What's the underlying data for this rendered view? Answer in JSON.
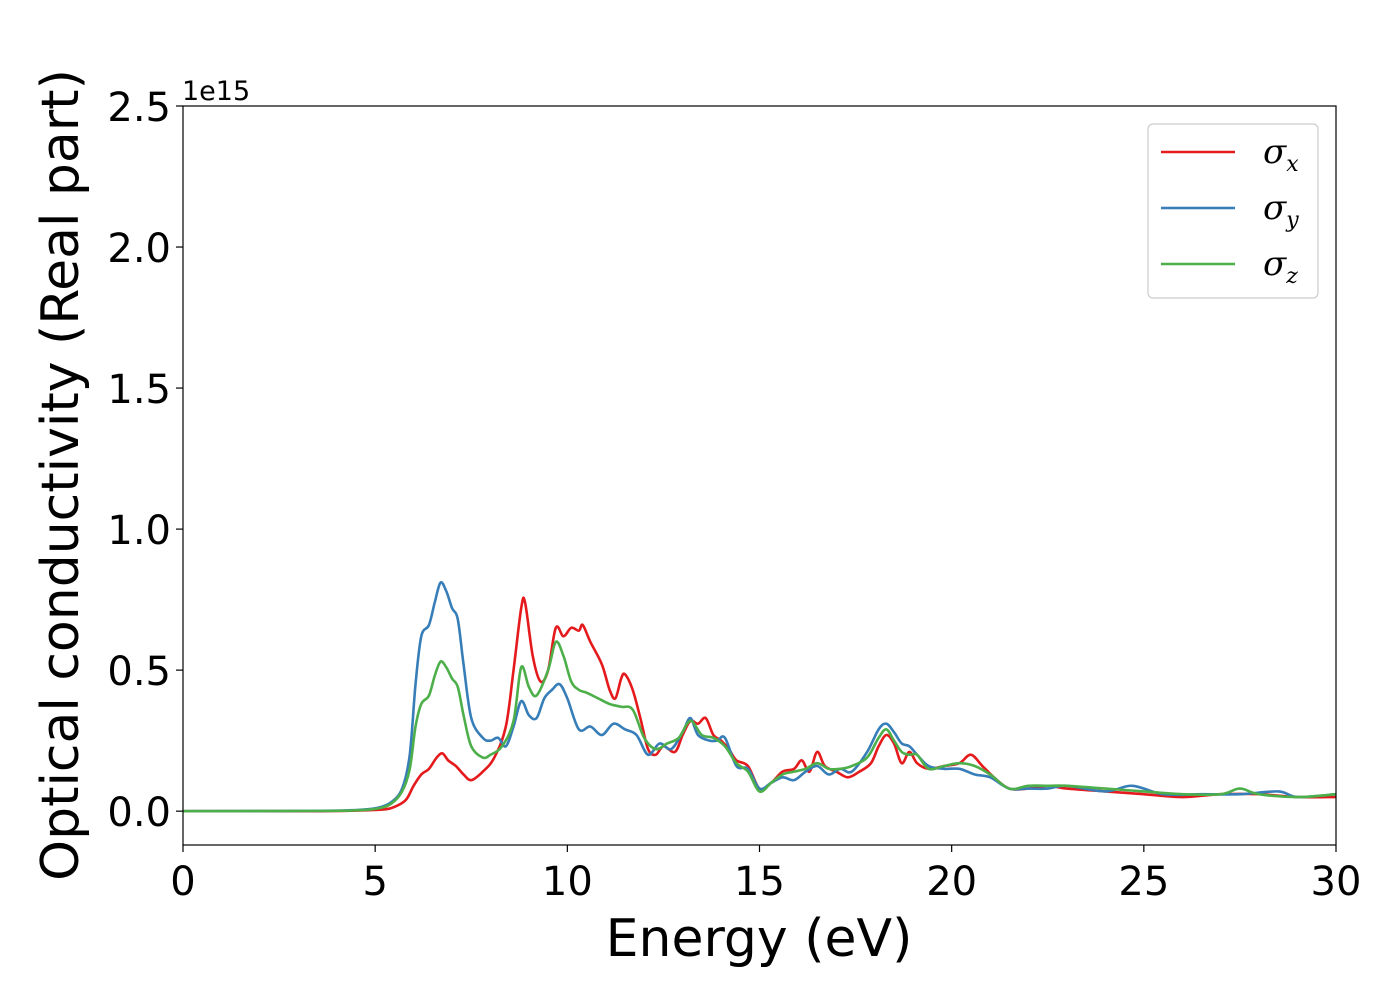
{
  "chart_data": {
    "type": "line",
    "title": "",
    "xlabel": "Energy (eV)",
    "ylabel": "Optical conductivity (Real part)",
    "y_offset_label": "1e15",
    "xlim": [
      0,
      30
    ],
    "ylim": [
      -0.12,
      2.5
    ],
    "x_ticks": [
      0,
      5,
      10,
      15,
      20,
      25,
      30
    ],
    "x_tick_labels": [
      "0",
      "5",
      "10",
      "15",
      "20",
      "25",
      "30"
    ],
    "y_ticks": [
      0.0,
      0.5,
      1.0,
      1.5,
      2.0,
      2.5
    ],
    "y_tick_labels": [
      "0.0",
      "0.5",
      "1.0",
      "1.5",
      "2.0",
      "2.5"
    ],
    "grid": false,
    "legend_position": "top-right",
    "series": [
      {
        "name": "σx",
        "legend_base": "σ",
        "legend_sub": "x",
        "color": "#e41a1c",
        "points": [
          [
            0,
            0.0
          ],
          [
            3.5,
            0.0
          ],
          [
            4.5,
            0.002
          ],
          [
            5.2,
            0.006
          ],
          [
            5.5,
            0.015
          ],
          [
            5.8,
            0.04
          ],
          [
            6.0,
            0.09
          ],
          [
            6.2,
            0.13
          ],
          [
            6.4,
            0.15
          ],
          [
            6.6,
            0.19
          ],
          [
            6.75,
            0.205
          ],
          [
            6.9,
            0.18
          ],
          [
            7.1,
            0.16
          ],
          [
            7.3,
            0.13
          ],
          [
            7.5,
            0.11
          ],
          [
            7.8,
            0.14
          ],
          [
            8.1,
            0.19
          ],
          [
            8.4,
            0.3
          ],
          [
            8.6,
            0.5
          ],
          [
            8.8,
            0.72
          ],
          [
            8.9,
            0.74
          ],
          [
            9.1,
            0.55
          ],
          [
            9.3,
            0.46
          ],
          [
            9.5,
            0.5
          ],
          [
            9.7,
            0.65
          ],
          [
            9.9,
            0.62
          ],
          [
            10.1,
            0.65
          ],
          [
            10.3,
            0.64
          ],
          [
            10.4,
            0.66
          ],
          [
            10.6,
            0.6
          ],
          [
            10.9,
            0.52
          ],
          [
            11.1,
            0.43
          ],
          [
            11.25,
            0.4
          ],
          [
            11.4,
            0.47
          ],
          [
            11.5,
            0.485
          ],
          [
            11.7,
            0.43
          ],
          [
            11.9,
            0.33
          ],
          [
            12.1,
            0.22
          ],
          [
            12.3,
            0.2
          ],
          [
            12.5,
            0.23
          ],
          [
            12.8,
            0.21
          ],
          [
            13.0,
            0.27
          ],
          [
            13.2,
            0.32
          ],
          [
            13.4,
            0.31
          ],
          [
            13.6,
            0.33
          ],
          [
            13.8,
            0.27
          ],
          [
            14.0,
            0.25
          ],
          [
            14.2,
            0.22
          ],
          [
            14.4,
            0.18
          ],
          [
            14.7,
            0.16
          ],
          [
            15.0,
            0.08
          ],
          [
            15.3,
            0.1
          ],
          [
            15.6,
            0.14
          ],
          [
            15.9,
            0.15
          ],
          [
            16.1,
            0.18
          ],
          [
            16.3,
            0.14
          ],
          [
            16.5,
            0.21
          ],
          [
            16.7,
            0.16
          ],
          [
            17.0,
            0.14
          ],
          [
            17.3,
            0.12
          ],
          [
            17.6,
            0.14
          ],
          [
            17.9,
            0.17
          ],
          [
            18.1,
            0.23
          ],
          [
            18.3,
            0.27
          ],
          [
            18.5,
            0.24
          ],
          [
            18.7,
            0.17
          ],
          [
            18.9,
            0.21
          ],
          [
            19.1,
            0.17
          ],
          [
            19.4,
            0.15
          ],
          [
            19.8,
            0.16
          ],
          [
            20.2,
            0.17
          ],
          [
            20.5,
            0.2
          ],
          [
            20.8,
            0.16
          ],
          [
            21.1,
            0.12
          ],
          [
            21.5,
            0.08
          ],
          [
            22.0,
            0.08
          ],
          [
            22.5,
            0.09
          ],
          [
            23.0,
            0.08
          ],
          [
            24.0,
            0.07
          ],
          [
            25.0,
            0.06
          ],
          [
            26.0,
            0.05
          ],
          [
            27.0,
            0.06
          ],
          [
            28.0,
            0.06
          ],
          [
            29.0,
            0.05
          ],
          [
            30.0,
            0.05
          ]
        ]
      },
      {
        "name": "σy",
        "legend_base": "σ",
        "legend_sub": "y",
        "color": "#377eb8",
        "points": [
          [
            0,
            0.0
          ],
          [
            3.5,
            0.001
          ],
          [
            4.5,
            0.004
          ],
          [
            5.0,
            0.01
          ],
          [
            5.4,
            0.03
          ],
          [
            5.7,
            0.08
          ],
          [
            5.9,
            0.2
          ],
          [
            6.05,
            0.45
          ],
          [
            6.2,
            0.62
          ],
          [
            6.4,
            0.66
          ],
          [
            6.55,
            0.74
          ],
          [
            6.7,
            0.81
          ],
          [
            6.85,
            0.78
          ],
          [
            7.0,
            0.72
          ],
          [
            7.15,
            0.68
          ],
          [
            7.3,
            0.52
          ],
          [
            7.5,
            0.33
          ],
          [
            7.8,
            0.26
          ],
          [
            8.0,
            0.25
          ],
          [
            8.2,
            0.26
          ],
          [
            8.4,
            0.23
          ],
          [
            8.6,
            0.3
          ],
          [
            8.8,
            0.39
          ],
          [
            9.0,
            0.34
          ],
          [
            9.2,
            0.33
          ],
          [
            9.4,
            0.4
          ],
          [
            9.6,
            0.43
          ],
          [
            9.8,
            0.45
          ],
          [
            10.0,
            0.4
          ],
          [
            10.3,
            0.29
          ],
          [
            10.6,
            0.3
          ],
          [
            10.9,
            0.27
          ],
          [
            11.2,
            0.31
          ],
          [
            11.5,
            0.29
          ],
          [
            11.8,
            0.27
          ],
          [
            12.1,
            0.2
          ],
          [
            12.4,
            0.24
          ],
          [
            12.7,
            0.22
          ],
          [
            13.0,
            0.28
          ],
          [
            13.2,
            0.33
          ],
          [
            13.4,
            0.27
          ],
          [
            13.7,
            0.25
          ],
          [
            13.9,
            0.25
          ],
          [
            14.1,
            0.26
          ],
          [
            14.4,
            0.16
          ],
          [
            14.7,
            0.15
          ],
          [
            15.0,
            0.08
          ],
          [
            15.3,
            0.1
          ],
          [
            15.6,
            0.12
          ],
          [
            15.9,
            0.11
          ],
          [
            16.2,
            0.14
          ],
          [
            16.5,
            0.16
          ],
          [
            16.8,
            0.13
          ],
          [
            17.1,
            0.15
          ],
          [
            17.4,
            0.14
          ],
          [
            17.8,
            0.21
          ],
          [
            18.1,
            0.29
          ],
          [
            18.3,
            0.31
          ],
          [
            18.5,
            0.28
          ],
          [
            18.7,
            0.24
          ],
          [
            18.9,
            0.23
          ],
          [
            19.1,
            0.2
          ],
          [
            19.4,
            0.16
          ],
          [
            19.8,
            0.15
          ],
          [
            20.2,
            0.15
          ],
          [
            20.6,
            0.13
          ],
          [
            21.0,
            0.12
          ],
          [
            21.5,
            0.08
          ],
          [
            22.0,
            0.08
          ],
          [
            22.5,
            0.08
          ],
          [
            23.0,
            0.09
          ],
          [
            24.0,
            0.07
          ],
          [
            24.7,
            0.09
          ],
          [
            25.5,
            0.06
          ],
          [
            26.5,
            0.06
          ],
          [
            27.5,
            0.06
          ],
          [
            28.5,
            0.07
          ],
          [
            29.0,
            0.05
          ],
          [
            30.0,
            0.06
          ]
        ]
      },
      {
        "name": "σz",
        "legend_base": "σ",
        "legend_sub": "z",
        "color": "#4daf4a",
        "points": [
          [
            0,
            0.0
          ],
          [
            3.5,
            0.001
          ],
          [
            4.5,
            0.003
          ],
          [
            5.0,
            0.008
          ],
          [
            5.4,
            0.025
          ],
          [
            5.7,
            0.07
          ],
          [
            5.9,
            0.15
          ],
          [
            6.05,
            0.3
          ],
          [
            6.2,
            0.38
          ],
          [
            6.4,
            0.41
          ],
          [
            6.55,
            0.48
          ],
          [
            6.7,
            0.53
          ],
          [
            6.85,
            0.51
          ],
          [
            7.0,
            0.47
          ],
          [
            7.15,
            0.44
          ],
          [
            7.3,
            0.34
          ],
          [
            7.5,
            0.23
          ],
          [
            7.8,
            0.19
          ],
          [
            8.0,
            0.2
          ],
          [
            8.3,
            0.23
          ],
          [
            8.6,
            0.32
          ],
          [
            8.8,
            0.51
          ],
          [
            9.0,
            0.44
          ],
          [
            9.2,
            0.41
          ],
          [
            9.5,
            0.5
          ],
          [
            9.7,
            0.6
          ],
          [
            9.9,
            0.55
          ],
          [
            10.1,
            0.46
          ],
          [
            10.3,
            0.43
          ],
          [
            10.5,
            0.42
          ],
          [
            10.8,
            0.4
          ],
          [
            11.1,
            0.38
          ],
          [
            11.4,
            0.37
          ],
          [
            11.7,
            0.36
          ],
          [
            12.0,
            0.26
          ],
          [
            12.3,
            0.22
          ],
          [
            12.6,
            0.24
          ],
          [
            12.9,
            0.26
          ],
          [
            13.2,
            0.32
          ],
          [
            13.5,
            0.27
          ],
          [
            13.8,
            0.26
          ],
          [
            14.1,
            0.23
          ],
          [
            14.4,
            0.17
          ],
          [
            14.7,
            0.14
          ],
          [
            15.0,
            0.07
          ],
          [
            15.3,
            0.1
          ],
          [
            15.6,
            0.13
          ],
          [
            15.9,
            0.14
          ],
          [
            16.2,
            0.15
          ],
          [
            16.5,
            0.17
          ],
          [
            16.8,
            0.15
          ],
          [
            17.1,
            0.15
          ],
          [
            17.4,
            0.16
          ],
          [
            17.8,
            0.19
          ],
          [
            18.1,
            0.26
          ],
          [
            18.3,
            0.29
          ],
          [
            18.5,
            0.25
          ],
          [
            18.7,
            0.21
          ],
          [
            18.9,
            0.2
          ],
          [
            19.1,
            0.2
          ],
          [
            19.4,
            0.15
          ],
          [
            19.8,
            0.16
          ],
          [
            20.2,
            0.17
          ],
          [
            20.6,
            0.16
          ],
          [
            21.0,
            0.13
          ],
          [
            21.5,
            0.08
          ],
          [
            22.0,
            0.09
          ],
          [
            22.5,
            0.09
          ],
          [
            23.0,
            0.09
          ],
          [
            24.0,
            0.08
          ],
          [
            25.0,
            0.07
          ],
          [
            26.0,
            0.06
          ],
          [
            27.0,
            0.06
          ],
          [
            27.5,
            0.08
          ],
          [
            28.0,
            0.06
          ],
          [
            29.0,
            0.05
          ],
          [
            30.0,
            0.06
          ]
        ]
      }
    ]
  }
}
